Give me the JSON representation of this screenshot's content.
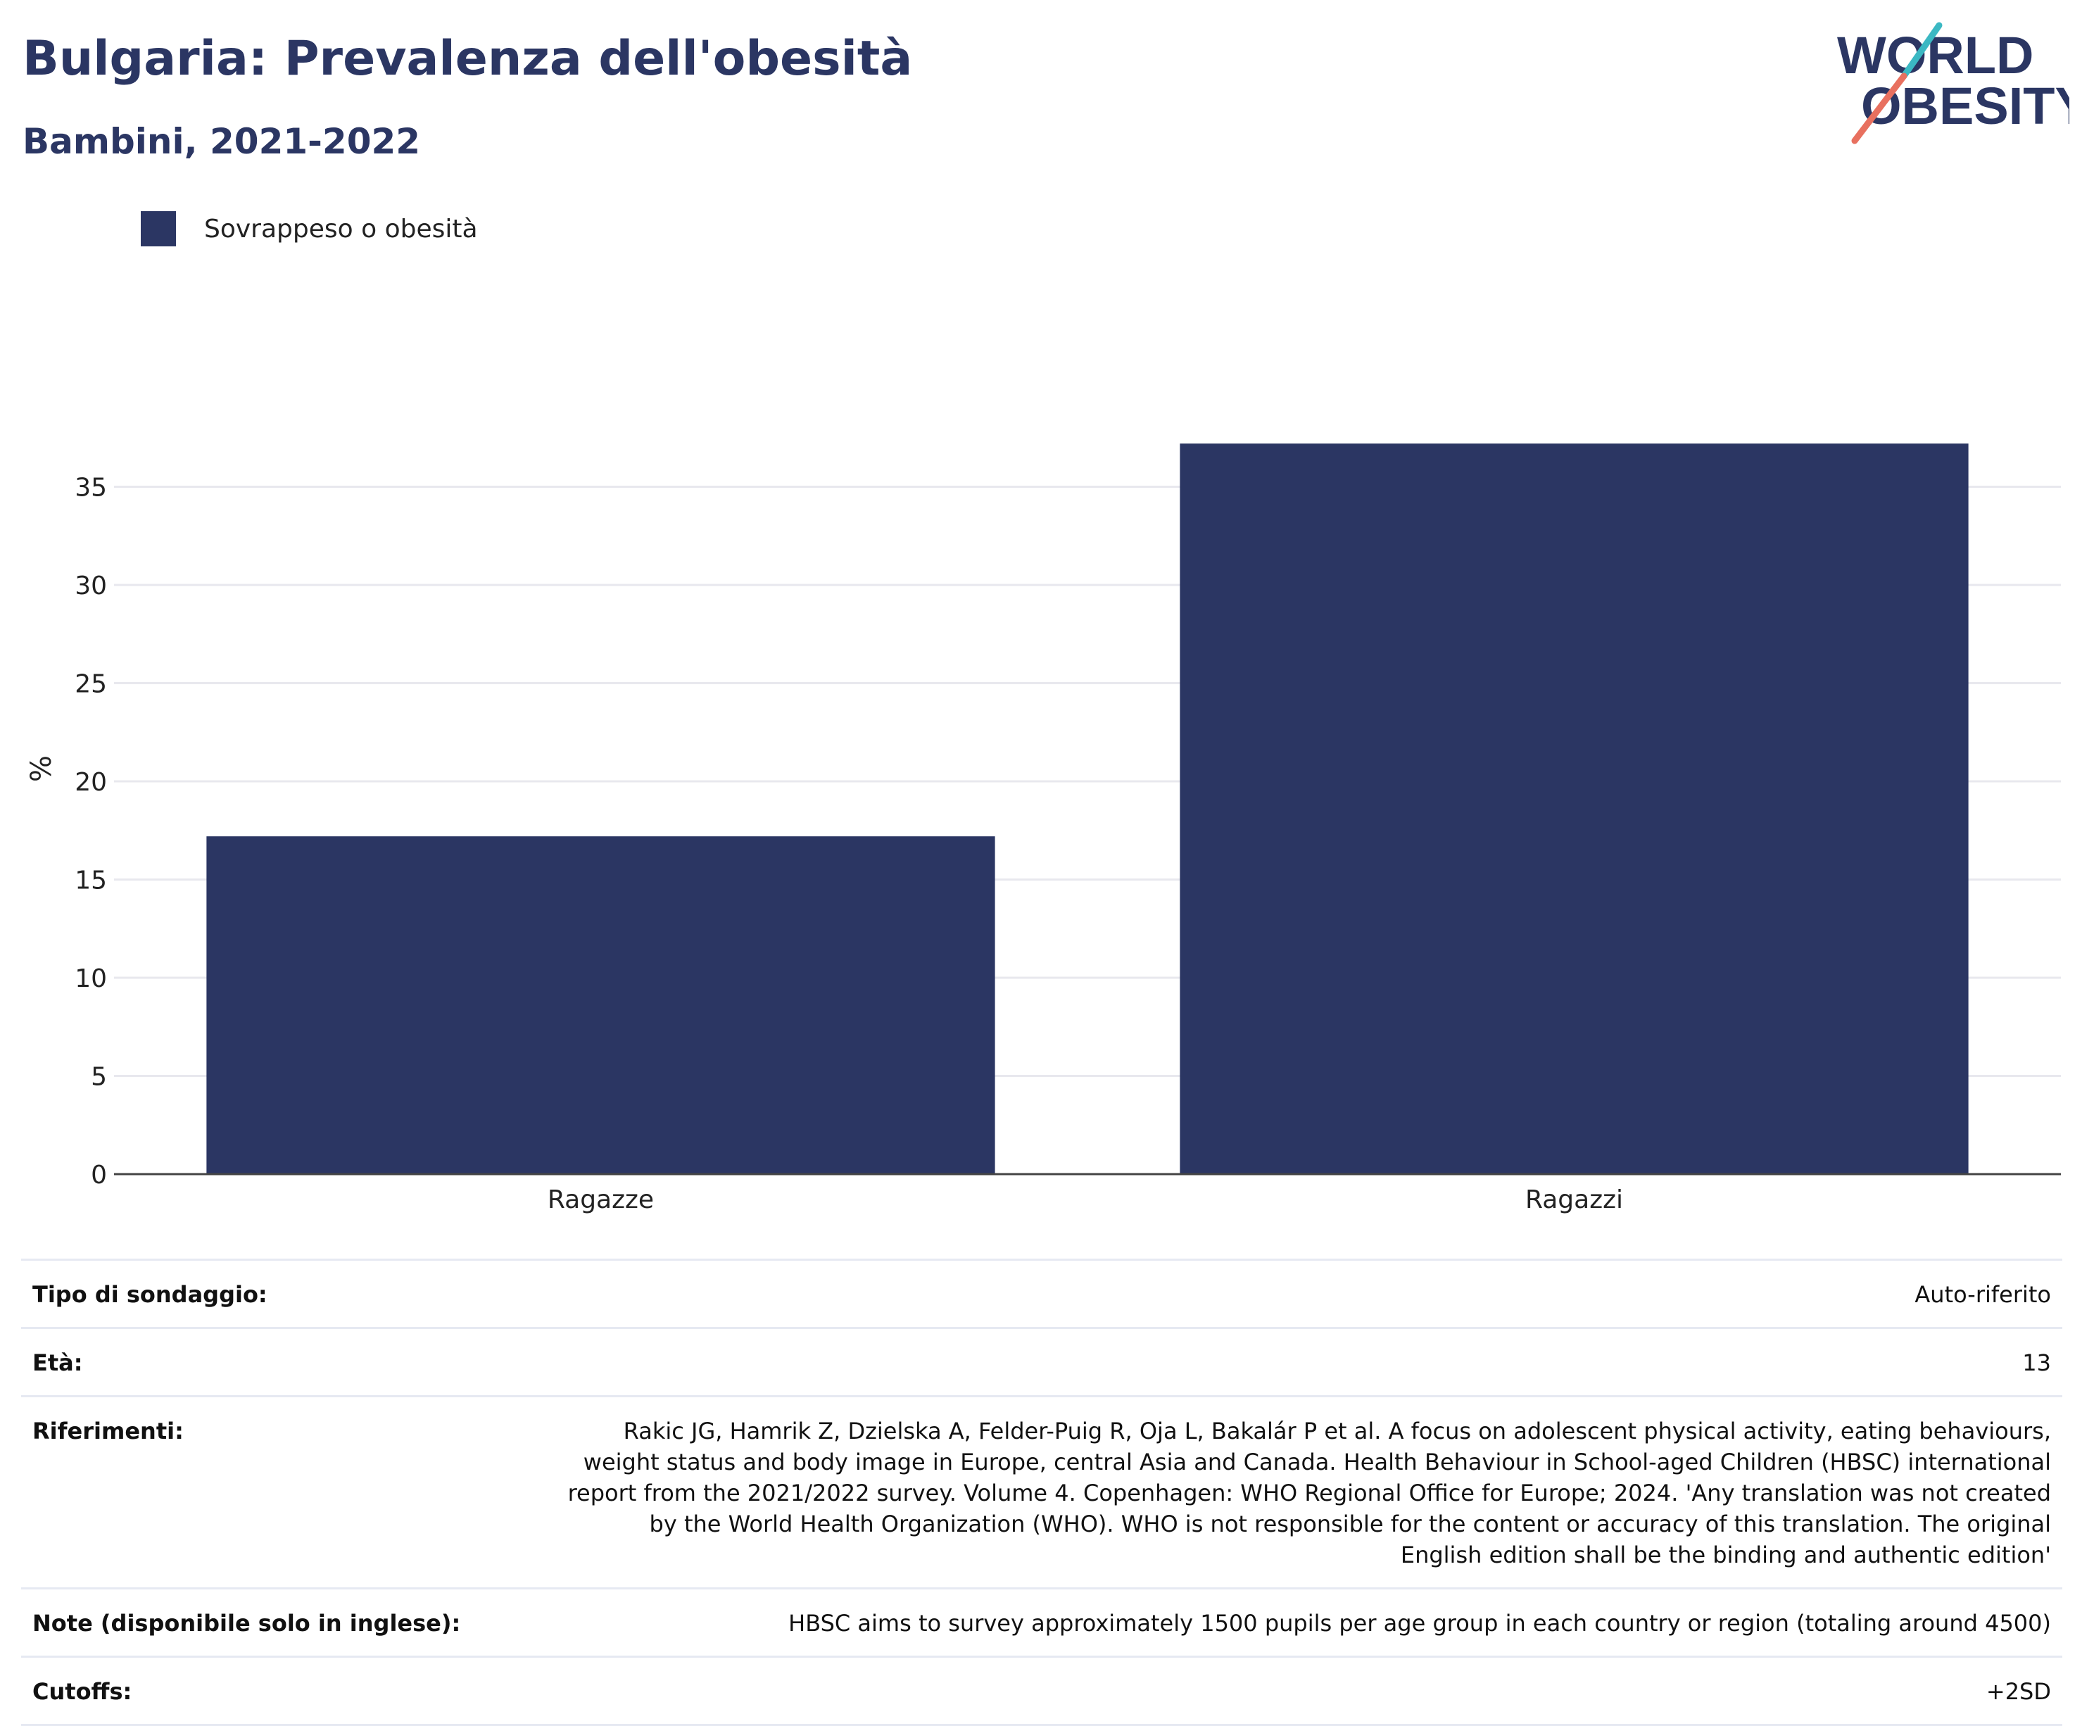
{
  "header": {
    "title": "Bulgaria: Prevalenza dell'obesità",
    "subtitle": "Bambini, 2021-2022"
  },
  "logo": {
    "line1": "WORLD",
    "line2": "OBESITY"
  },
  "legend": {
    "label": "Sovrappeso o obesità",
    "color": "#2b3663"
  },
  "chart_data": {
    "type": "bar",
    "categories": [
      "Ragazze",
      "Ragazzi"
    ],
    "series": [
      {
        "name": "Sovrappeso o obesità",
        "values": [
          17.2,
          37.2
        ],
        "color": "#2b3663"
      }
    ],
    "ylabel": "%",
    "ylim": [
      0,
      40
    ],
    "yticks": [
      0,
      5,
      10,
      15,
      20,
      25,
      30,
      35
    ],
    "grid": true,
    "legend_position": "top-left"
  },
  "info_table": [
    {
      "label": "Tipo di sondaggio:",
      "value": "Auto-riferito"
    },
    {
      "label": "Età:",
      "value": "13"
    },
    {
      "label": "Riferimenti:",
      "value": "Rakic JG, Hamrik Z, Dzielska A, Felder-Puig R, Oja L, Bakalár P et al. A focus on adolescent physical activity, eating behaviours, weight status and body image in Europe, central Asia and Canada. Health Behaviour in School-aged Children (HBSC) international report from the 2021/2022 survey. Volume 4. Copenhagen: WHO Regional Office for Europe; 2024. 'Any translation was not created by the World Health Organization (WHO). WHO is not responsible for the content or accuracy of this translation. The original English edition shall be the binding and authentic edition'"
    },
    {
      "label": "Note (disponibile solo in inglese):",
      "value": "HBSC aims to survey approximately 1500 pupils per age group in each country or region (totaling around 4500)"
    },
    {
      "label": "Cutoffs:",
      "value": "+2SD"
    }
  ]
}
